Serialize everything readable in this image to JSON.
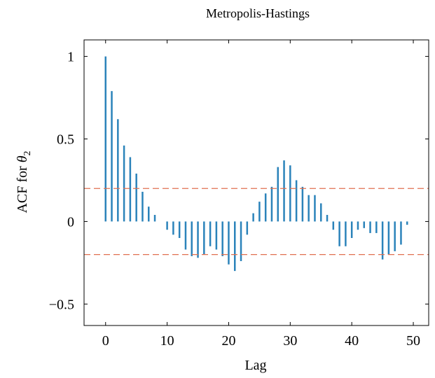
{
  "chart_data": {
    "type": "bar",
    "title": "Metropolis-Hastings",
    "xlabel": "Lag",
    "ylabel_text": "ACF for ",
    "ylabel_symbol": "θ",
    "ylabel_subscript": "2",
    "xlim": [
      -3.5,
      52.5
    ],
    "ylim": [
      -0.63,
      1.1
    ],
    "xticks": [
      0,
      10,
      20,
      30,
      40,
      50
    ],
    "xtick_labels": [
      "0",
      "10",
      "20",
      "30",
      "40",
      "50"
    ],
    "yticks": [
      1,
      0.5,
      0,
      -0.5
    ],
    "ytick_labels": [
      "1",
      "0.5",
      "0",
      "−0.5"
    ],
    "confidence_bounds": [
      0.2,
      -0.2
    ],
    "colors": {
      "bars": "#2b83ba",
      "bounds": "#e07050",
      "axes": "#000000"
    },
    "grid": false,
    "lags": [
      0,
      1,
      2,
      3,
      4,
      5,
      6,
      7,
      8,
      9,
      10,
      11,
      12,
      13,
      14,
      15,
      16,
      17,
      18,
      19,
      20,
      21,
      22,
      23,
      24,
      25,
      26,
      27,
      28,
      29,
      30,
      31,
      32,
      33,
      34,
      35,
      36,
      37,
      38,
      39,
      40,
      41,
      42,
      43,
      44,
      45,
      46,
      47,
      48,
      49
    ],
    "values": [
      1.0,
      0.79,
      0.62,
      0.46,
      0.39,
      0.29,
      0.18,
      0.09,
      0.04,
      0.0,
      -0.05,
      -0.08,
      -0.1,
      -0.17,
      -0.21,
      -0.22,
      -0.2,
      -0.15,
      -0.17,
      -0.21,
      -0.26,
      -0.3,
      -0.24,
      -0.08,
      0.05,
      0.12,
      0.17,
      0.21,
      0.33,
      0.37,
      0.34,
      0.25,
      0.21,
      0.16,
      0.16,
      0.11,
      0.04,
      -0.05,
      -0.15,
      -0.15,
      -0.1,
      -0.05,
      -0.04,
      -0.07,
      -0.07,
      -0.23,
      -0.2,
      -0.18,
      -0.14,
      -0.02
    ]
  }
}
